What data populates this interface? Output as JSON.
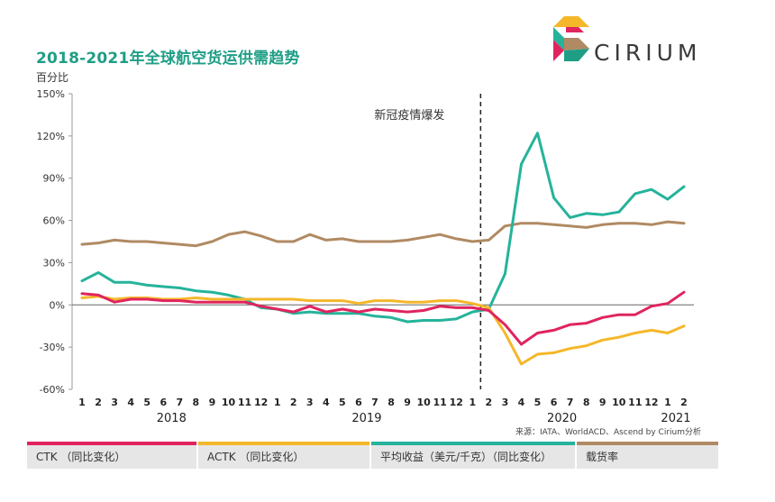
{
  "title": "2018-2021年全球航空货运供需趋势",
  "brand": "CIRIUM",
  "source": "来源：IATA、WorldACD、Ascend by Cirium分析",
  "event_label": "新冠疫情爆发",
  "legend": [
    {
      "label": "CTK （同比变化）",
      "color": "#e0245e"
    },
    {
      "label": "ACTK （同比变化）",
      "color": "#f5b72a"
    },
    {
      "label": "平均收益（美元/千克）（同比变化）",
      "color": "#25b39b"
    },
    {
      "label": "载货率",
      "color": "#b08a63"
    }
  ],
  "chart_data": {
    "type": "line",
    "title": "2018-2021年全球航空货运供需趋势",
    "ylabel": "百分比",
    "ylim": [
      -60,
      150
    ],
    "yticks": [
      -60,
      -30,
      0,
      30,
      60,
      90,
      120,
      150
    ],
    "ytick_labels": [
      "-60%",
      "-30%",
      "0%",
      "30%",
      "60%",
      "90%",
      "120%",
      "150%"
    ],
    "categories": [
      "1",
      "2",
      "3",
      "4",
      "5",
      "6",
      "7",
      "8",
      "9",
      "10",
      "11",
      "12",
      "1",
      "2",
      "3",
      "4",
      "5",
      "6",
      "7",
      "8",
      "9",
      "10",
      "11",
      "12",
      "1",
      "2",
      "3",
      "4",
      "5",
      "6",
      "7",
      "8",
      "9",
      "10",
      "11",
      "12",
      "1",
      "2"
    ],
    "years": [
      {
        "label": "2018",
        "start": 0,
        "end": 11
      },
      {
        "label": "2019",
        "start": 12,
        "end": 23
      },
      {
        "label": "2020",
        "start": 24,
        "end": 35
      },
      {
        "label": "2021",
        "start": 36,
        "end": 37
      }
    ],
    "event_index": 24.5,
    "series": [
      {
        "name": "载货率",
        "color": "#b08a63",
        "values": [
          43,
          44,
          46,
          45,
          45,
          44,
          43,
          42,
          45,
          50,
          52,
          49,
          45,
          45,
          50,
          46,
          47,
          45,
          45,
          45,
          46,
          48,
          50,
          47,
          45,
          46,
          56,
          58,
          58,
          57,
          56,
          55,
          57,
          58,
          58,
          57,
          59,
          58
        ]
      },
      {
        "name": "平均收益（美元/千克）（同比变化）",
        "color": "#25b39b",
        "values": [
          17,
          23,
          16,
          16,
          14,
          13,
          12,
          10,
          9,
          7,
          4,
          -2,
          -3,
          -6,
          -5,
          -6,
          -6,
          -6,
          -8,
          -9,
          -12,
          -11,
          -11,
          -10,
          -5,
          -3,
          22,
          100,
          122,
          76,
          62,
          65,
          64,
          66,
          79,
          82,
          75,
          84
        ]
      },
      {
        "name": "ACTK （同比变化）",
        "color": "#f5b72a",
        "values": [
          5,
          6,
          4,
          5,
          5,
          4,
          4,
          5,
          4,
          4,
          4,
          4,
          4,
          4,
          3,
          3,
          3,
          1,
          3,
          3,
          2,
          2,
          3,
          3,
          1,
          -2,
          -20,
          -42,
          -35,
          -34,
          -31,
          -29,
          -25,
          -23,
          -20,
          -18,
          -20,
          -15
        ]
      },
      {
        "name": "CTK （同比变化）",
        "color": "#e0245e",
        "values": [
          8,
          7,
          2,
          4,
          4,
          3,
          3,
          2,
          2,
          2,
          2,
          -1,
          -3,
          -5,
          -1,
          -5,
          -3,
          -5,
          -3,
          -4,
          -5,
          -4,
          -1,
          -2,
          -2,
          -4,
          -14,
          -28,
          -20,
          -18,
          -14,
          -13,
          -9,
          -7,
          -7,
          -1,
          1,
          9
        ]
      }
    ]
  }
}
